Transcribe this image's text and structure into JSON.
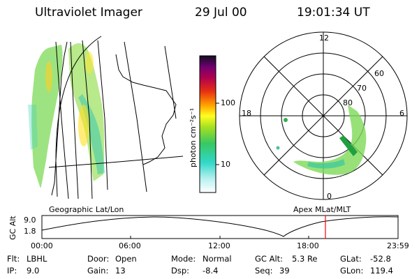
{
  "header": {
    "title": "Ultraviolet Imager",
    "date": "29 Jul 00",
    "time": "19:01:34 UT"
  },
  "colorbar": {
    "unit_label": "photon cm⁻²s⁻¹",
    "ticks": [
      "100",
      "10"
    ]
  },
  "panels": {
    "left_label": "Geographic Lat/Lon",
    "right_label": "Apex MLat/MLT"
  },
  "polar": {
    "mlt_labels": {
      "top": "12",
      "left": "18",
      "right": "6",
      "bottom": "0"
    },
    "lat_labels": [
      "60",
      "70",
      "80"
    ]
  },
  "altitude_plot": {
    "ylabel": "GC Alt",
    "ytick_top": "9.0",
    "ytick_bottom": "1.8",
    "xticks": [
      "00:00",
      "06:00",
      "12:00",
      "18:00",
      "23:59"
    ],
    "marker_color": "#ff0000"
  },
  "status": {
    "filter_label": "Flt:",
    "filter_value": "LBHL",
    "ip_label": "IP:",
    "ip_value": "9.0",
    "door_label": "Door:",
    "door_value": "Open",
    "gain_label": "Gain:",
    "gain_value": "13",
    "mode_label": "Mode:",
    "mode_value": "Normal",
    "dsp_label": "Dsp:",
    "dsp_value": "-8.4",
    "gcalt_label": "GC Alt:",
    "gcalt_value": "5.3 Re",
    "seq_label": "Seq:",
    "seq_value": "39",
    "glat_label": "GLat:",
    "glat_value": "-52.8",
    "glon_label": "GLon:",
    "glon_value": "119.4"
  }
}
